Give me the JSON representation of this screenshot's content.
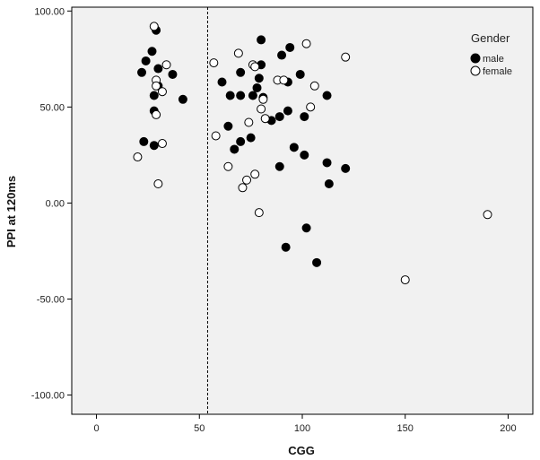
{
  "chart_data": {
    "type": "scatter",
    "title": "",
    "xlabel": "CGG",
    "ylabel": "PPI at 120ms",
    "xlim": [
      -12,
      212
    ],
    "ylim": [
      -110,
      102
    ],
    "xticks": [
      0,
      50,
      100,
      150,
      200
    ],
    "xtick_labels": [
      "0",
      "50",
      "100",
      "150",
      "200"
    ],
    "yticks": [
      -100,
      -50,
      0,
      50,
      100
    ],
    "ytick_labels": [
      "-100.00",
      "-50.00",
      "0.00",
      "50.00",
      "100.00"
    ],
    "reference_line": {
      "x": 54,
      "style": "dashed"
    },
    "grid": false,
    "legend": {
      "title": "Gender",
      "placement": "top-right",
      "entries": [
        {
          "label": "male",
          "marker": "filled-circle"
        },
        {
          "label": "female",
          "marker": "open-circle"
        }
      ]
    },
    "colors": {
      "plot_background": "#f1f1f1",
      "marker": "#000000",
      "frame": "#000000"
    },
    "series": [
      {
        "name": "male",
        "points": [
          [
            29,
            90
          ],
          [
            27,
            79
          ],
          [
            24,
            74
          ],
          [
            22,
            68
          ],
          [
            28,
            56
          ],
          [
            30,
            70
          ],
          [
            30,
            61
          ],
          [
            37,
            67
          ],
          [
            42,
            54
          ],
          [
            28,
            48
          ],
          [
            23,
            32
          ],
          [
            28,
            30
          ],
          [
            80,
            85
          ],
          [
            94,
            81
          ],
          [
            90,
            77
          ],
          [
            70,
            68
          ],
          [
            80,
            72
          ],
          [
            79,
            65
          ],
          [
            61,
            63
          ],
          [
            78,
            60
          ],
          [
            93,
            63
          ],
          [
            99,
            67
          ],
          [
            65,
            56
          ],
          [
            70,
            56
          ],
          [
            76,
            56
          ],
          [
            81,
            55
          ],
          [
            101,
            45
          ],
          [
            112,
            56
          ],
          [
            93,
            48
          ],
          [
            89,
            45
          ],
          [
            85,
            43
          ],
          [
            64,
            40
          ],
          [
            70,
            32
          ],
          [
            67,
            28
          ],
          [
            75,
            34
          ],
          [
            96,
            29
          ],
          [
            101,
            25
          ],
          [
            112,
            21
          ],
          [
            121,
            18
          ],
          [
            89,
            19
          ],
          [
            113,
            10
          ],
          [
            102,
            -13
          ],
          [
            92,
            -23
          ],
          [
            107,
            -31
          ]
        ]
      },
      {
        "name": "female",
        "points": [
          [
            28,
            92
          ],
          [
            34,
            72
          ],
          [
            29,
            64
          ],
          [
            29,
            61
          ],
          [
            32,
            58
          ],
          [
            29,
            46
          ],
          [
            20,
            24
          ],
          [
            32,
            31
          ],
          [
            30,
            10
          ],
          [
            57,
            73
          ],
          [
            58,
            35
          ],
          [
            64,
            19
          ],
          [
            69,
            78
          ],
          [
            76,
            72
          ],
          [
            77,
            71
          ],
          [
            88,
            64
          ],
          [
            91,
            64
          ],
          [
            80,
            49
          ],
          [
            81,
            54
          ],
          [
            82,
            44
          ],
          [
            74,
            42
          ],
          [
            102,
            83
          ],
          [
            106,
            61
          ],
          [
            104,
            50
          ],
          [
            121,
            76
          ],
          [
            77,
            15
          ],
          [
            73,
            12
          ],
          [
            71,
            8
          ],
          [
            79,
            -5
          ],
          [
            150,
            -40
          ],
          [
            190,
            -6
          ]
        ]
      }
    ]
  }
}
